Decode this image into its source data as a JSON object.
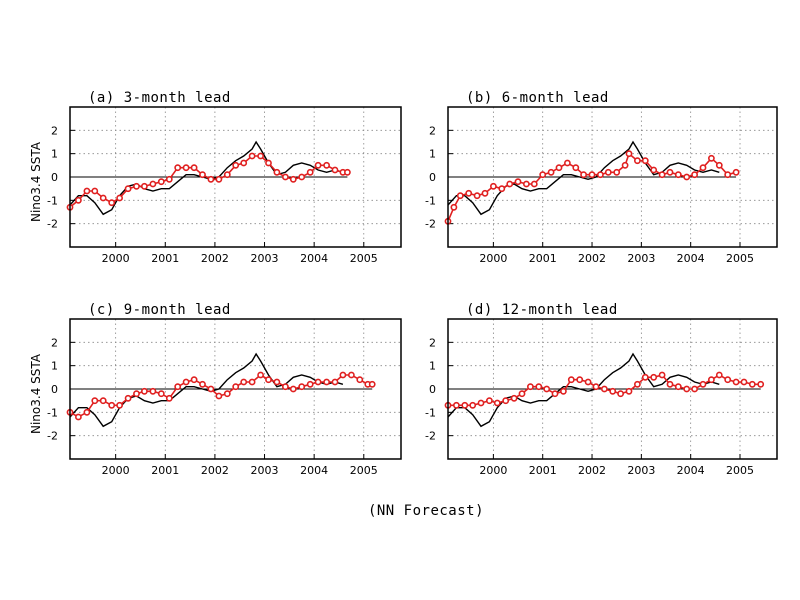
{
  "footer": "(NN Forecast)",
  "colors": {
    "observed": "#000000",
    "forecast": "#e02020",
    "grid": "#888888"
  },
  "chart_data": [
    {
      "type": "line",
      "title": "(a) 3-month lead",
      "ylabel": "Nino3.4 SSTA",
      "xlim": [
        1999.08,
        2005.75
      ],
      "ylim": [
        -3,
        3
      ],
      "xticks": [
        "2000",
        "2001",
        "2002",
        "2003",
        "2004",
        "2005"
      ],
      "yticks": [
        "2",
        "1",
        "0",
        "-1",
        "-2"
      ],
      "grid": true,
      "series": [
        {
          "role": "observed",
          "x": [
            1999.08,
            1999.25,
            1999.42,
            1999.58,
            1999.75,
            1999.92,
            2000.08,
            2000.25,
            2000.42,
            2000.58,
            2000.75,
            2000.92,
            2001.08,
            2001.25,
            2001.42,
            2001.58,
            2001.75,
            2001.92,
            2002.08,
            2002.25,
            2002.42,
            2002.58,
            2002.75,
            2002.83,
            2002.92,
            2003.08,
            2003.25,
            2003.42,
            2003.58,
            2003.75,
            2003.92,
            2004.08,
            2004.25,
            2004.42,
            2004.58
          ],
          "y": [
            -1.2,
            -0.8,
            -0.8,
            -1.1,
            -1.6,
            -1.4,
            -0.8,
            -0.4,
            -0.3,
            -0.5,
            -0.6,
            -0.5,
            -0.5,
            -0.2,
            0.1,
            0.1,
            0.0,
            -0.1,
            0.0,
            0.4,
            0.7,
            0.9,
            1.2,
            1.5,
            1.2,
            0.6,
            0.1,
            0.2,
            0.5,
            0.6,
            0.5,
            0.3,
            0.2,
            0.3,
            0.2
          ]
        },
        {
          "role": "forecast",
          "x": [
            1999.08,
            1999.25,
            1999.42,
            1999.58,
            1999.75,
            1999.92,
            2000.08,
            2000.25,
            2000.42,
            2000.58,
            2000.75,
            2000.92,
            2001.08,
            2001.25,
            2001.42,
            2001.58,
            2001.75,
            2001.92,
            2002.08,
            2002.25,
            2002.42,
            2002.58,
            2002.75,
            2002.92,
            2003.08,
            2003.25,
            2003.42,
            2003.58,
            2003.75,
            2003.92,
            2004.08,
            2004.25,
            2004.42,
            2004.58,
            2004.67
          ],
          "y": [
            -1.3,
            -1.0,
            -0.6,
            -0.6,
            -0.9,
            -1.1,
            -0.9,
            -0.5,
            -0.4,
            -0.4,
            -0.3,
            -0.2,
            -0.1,
            0.4,
            0.4,
            0.4,
            0.1,
            -0.1,
            -0.1,
            0.1,
            0.5,
            0.6,
            0.9,
            0.9,
            0.6,
            0.2,
            0.0,
            -0.1,
            0.0,
            0.2,
            0.5,
            0.5,
            0.3,
            0.2,
            0.2
          ]
        }
      ]
    },
    {
      "type": "line",
      "title": "(b) 6-month lead",
      "ylabel": "",
      "xlim": [
        1999.08,
        2005.75
      ],
      "ylim": [
        -3,
        3
      ],
      "xticks": [
        "2000",
        "2001",
        "2002",
        "2003",
        "2004",
        "2005"
      ],
      "yticks": [
        "2",
        "1",
        "0",
        "-1",
        "-2"
      ],
      "grid": true,
      "series": [
        {
          "role": "observed",
          "x": [
            1999.08,
            1999.25,
            1999.42,
            1999.58,
            1999.75,
            1999.92,
            2000.08,
            2000.25,
            2000.42,
            2000.58,
            2000.75,
            2000.92,
            2001.08,
            2001.25,
            2001.42,
            2001.58,
            2001.75,
            2001.92,
            2002.08,
            2002.25,
            2002.42,
            2002.58,
            2002.75,
            2002.83,
            2002.92,
            2003.08,
            2003.25,
            2003.42,
            2003.58,
            2003.75,
            2003.92,
            2004.08,
            2004.25,
            2004.42,
            2004.58
          ],
          "y": [
            -1.2,
            -0.8,
            -0.8,
            -1.1,
            -1.6,
            -1.4,
            -0.8,
            -0.4,
            -0.3,
            -0.5,
            -0.6,
            -0.5,
            -0.5,
            -0.2,
            0.1,
            0.1,
            0.0,
            -0.1,
            0.0,
            0.4,
            0.7,
            0.9,
            1.2,
            1.5,
            1.2,
            0.6,
            0.1,
            0.2,
            0.5,
            0.6,
            0.5,
            0.3,
            0.2,
            0.3,
            0.2
          ]
        },
        {
          "role": "forecast",
          "x": [
            1999.08,
            1999.2,
            1999.33,
            1999.5,
            1999.67,
            1999.83,
            2000.0,
            2000.17,
            2000.33,
            2000.5,
            2000.67,
            2000.83,
            2001.0,
            2001.17,
            2001.33,
            2001.5,
            2001.67,
            2001.83,
            2002.0,
            2002.17,
            2002.33,
            2002.5,
            2002.67,
            2002.75,
            2002.92,
            2003.08,
            2003.25,
            2003.42,
            2003.58,
            2003.75,
            2003.92,
            2004.08,
            2004.25,
            2004.42,
            2004.58,
            2004.75,
            2004.92
          ],
          "y": [
            -1.9,
            -1.3,
            -0.8,
            -0.7,
            -0.8,
            -0.7,
            -0.4,
            -0.5,
            -0.3,
            -0.2,
            -0.3,
            -0.3,
            0.1,
            0.2,
            0.4,
            0.6,
            0.4,
            0.1,
            0.1,
            0.1,
            0.2,
            0.2,
            0.5,
            1.0,
            0.7,
            0.7,
            0.3,
            0.1,
            0.2,
            0.1,
            0.0,
            0.1,
            0.4,
            0.8,
            0.5,
            0.1,
            0.2
          ]
        }
      ]
    },
    {
      "type": "line",
      "title": "(c) 9-month lead",
      "ylabel": "Nino3.4 SSTA",
      "xlim": [
        1999.08,
        2005.75
      ],
      "ylim": [
        -3,
        3
      ],
      "xticks": [
        "2000",
        "2001",
        "2002",
        "2003",
        "2004",
        "2005"
      ],
      "yticks": [
        "2",
        "1",
        "0",
        "-1",
        "-2"
      ],
      "grid": true,
      "series": [
        {
          "role": "observed",
          "x": [
            1999.08,
            1999.25,
            1999.42,
            1999.58,
            1999.75,
            1999.92,
            2000.08,
            2000.25,
            2000.42,
            2000.58,
            2000.75,
            2000.92,
            2001.08,
            2001.25,
            2001.42,
            2001.58,
            2001.75,
            2001.92,
            2002.08,
            2002.25,
            2002.42,
            2002.58,
            2002.75,
            2002.83,
            2002.92,
            2003.08,
            2003.25,
            2003.42,
            2003.58,
            2003.75,
            2003.92,
            2004.08,
            2004.25,
            2004.42,
            2004.58
          ],
          "y": [
            -1.2,
            -0.8,
            -0.8,
            -1.1,
            -1.6,
            -1.4,
            -0.8,
            -0.4,
            -0.3,
            -0.5,
            -0.6,
            -0.5,
            -0.5,
            -0.2,
            0.1,
            0.1,
            0.0,
            -0.1,
            0.0,
            0.4,
            0.7,
            0.9,
            1.2,
            1.5,
            1.2,
            0.6,
            0.1,
            0.2,
            0.5,
            0.6,
            0.5,
            0.3,
            0.2,
            0.3,
            0.2
          ]
        },
        {
          "role": "forecast",
          "x": [
            1999.08,
            1999.25,
            1999.42,
            1999.58,
            1999.75,
            1999.92,
            2000.08,
            2000.25,
            2000.42,
            2000.58,
            2000.75,
            2000.92,
            2001.08,
            2001.25,
            2001.42,
            2001.58,
            2001.75,
            2001.92,
            2002.08,
            2002.25,
            2002.42,
            2002.58,
            2002.75,
            2002.92,
            2003.08,
            2003.25,
            2003.42,
            2003.58,
            2003.75,
            2003.92,
            2004.08,
            2004.25,
            2004.42,
            2004.58,
            2004.75,
            2004.92,
            2005.08,
            2005.17
          ],
          "y": [
            -1.0,
            -1.2,
            -1.0,
            -0.5,
            -0.5,
            -0.7,
            -0.7,
            -0.4,
            -0.2,
            -0.1,
            -0.1,
            -0.2,
            -0.4,
            0.1,
            0.3,
            0.4,
            0.2,
            0.0,
            -0.3,
            -0.2,
            0.1,
            0.3,
            0.3,
            0.6,
            0.4,
            0.3,
            0.1,
            0.0,
            0.1,
            0.2,
            0.3,
            0.3,
            0.3,
            0.6,
            0.6,
            0.4,
            0.2,
            0.2
          ]
        }
      ]
    },
    {
      "type": "line",
      "title": "(d) 12-month lead",
      "ylabel": "",
      "xlim": [
        1999.08,
        2005.75
      ],
      "ylim": [
        -3,
        3
      ],
      "xticks": [
        "2000",
        "2001",
        "2002",
        "2003",
        "2004",
        "2005"
      ],
      "yticks": [
        "2",
        "1",
        "0",
        "-1",
        "-2"
      ],
      "grid": true,
      "series": [
        {
          "role": "observed",
          "x": [
            1999.08,
            1999.25,
            1999.42,
            1999.58,
            1999.75,
            1999.92,
            2000.08,
            2000.25,
            2000.42,
            2000.58,
            2000.75,
            2000.92,
            2001.08,
            2001.25,
            2001.42,
            2001.58,
            2001.75,
            2001.92,
            2002.08,
            2002.25,
            2002.42,
            2002.58,
            2002.75,
            2002.83,
            2002.92,
            2003.08,
            2003.25,
            2003.42,
            2003.58,
            2003.75,
            2003.92,
            2004.08,
            2004.25,
            2004.42,
            2004.58
          ],
          "y": [
            -1.2,
            -0.8,
            -0.8,
            -1.1,
            -1.6,
            -1.4,
            -0.8,
            -0.4,
            -0.3,
            -0.5,
            -0.6,
            -0.5,
            -0.5,
            -0.2,
            0.1,
            0.1,
            0.0,
            -0.1,
            0.0,
            0.4,
            0.7,
            0.9,
            1.2,
            1.5,
            1.2,
            0.6,
            0.1,
            0.2,
            0.5,
            0.6,
            0.5,
            0.3,
            0.2,
            0.3,
            0.2
          ]
        },
        {
          "role": "forecast",
          "x": [
            1999.08,
            1999.25,
            1999.42,
            1999.58,
            1999.75,
            1999.92,
            2000.08,
            2000.25,
            2000.42,
            2000.58,
            2000.75,
            2000.92,
            2001.08,
            2001.25,
            2001.42,
            2001.58,
            2001.75,
            2001.92,
            2002.08,
            2002.25,
            2002.42,
            2002.58,
            2002.75,
            2002.92,
            2003.08,
            2003.25,
            2003.42,
            2003.58,
            2003.75,
            2003.92,
            2004.08,
            2004.25,
            2004.42,
            2004.58,
            2004.75,
            2004.92,
            2005.08,
            2005.25,
            2005.42
          ],
          "y": [
            -0.7,
            -0.7,
            -0.7,
            -0.7,
            -0.6,
            -0.5,
            -0.6,
            -0.5,
            -0.4,
            -0.2,
            0.1,
            0.1,
            0.0,
            -0.2,
            -0.1,
            0.4,
            0.4,
            0.3,
            0.1,
            0.0,
            -0.1,
            -0.2,
            -0.1,
            0.2,
            0.5,
            0.5,
            0.6,
            0.2,
            0.1,
            0.0,
            0.0,
            0.2,
            0.4,
            0.6,
            0.4,
            0.3,
            0.3,
            0.2,
            0.2
          ]
        }
      ]
    }
  ]
}
